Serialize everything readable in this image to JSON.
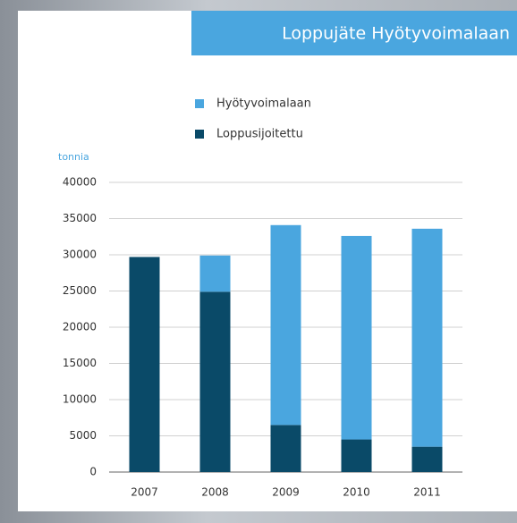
{
  "chart_data": {
    "type": "stacked-bar",
    "title": "Loppujäte Hyötyvoimalaan",
    "y_label": "tonnia",
    "categories": [
      "2007",
      "2008",
      "2009",
      "2010",
      "2011"
    ],
    "series": [
      {
        "name": "Hyötyvoimalaan",
        "color": "#4aa6df",
        "values": [
          0,
          5000,
          27600,
          28100,
          30100
        ]
      },
      {
        "name": "Loppusijoitettu",
        "color": "#0a4a68",
        "values": [
          29700,
          24900,
          6500,
          4500,
          3500
        ]
      }
    ],
    "ylim": [
      0,
      40000
    ],
    "yticks": [
      0,
      5000,
      10000,
      15000,
      20000,
      25000,
      30000,
      35000,
      40000
    ],
    "grid": true
  }
}
